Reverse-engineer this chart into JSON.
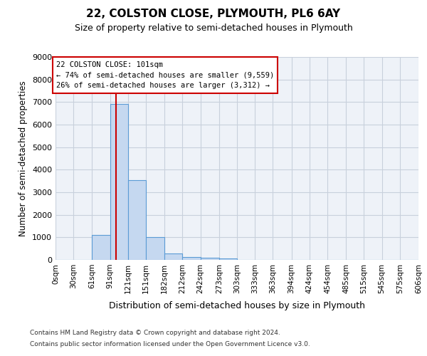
{
  "title1": "22, COLSTON CLOSE, PLYMOUTH, PL6 6AY",
  "title2": "Size of property relative to semi-detached houses in Plymouth",
  "xlabel": "Distribution of semi-detached houses by size in Plymouth",
  "ylabel": "Number of semi-detached properties",
  "bin_labels": [
    "0sqm",
    "30sqm",
    "61sqm",
    "91sqm",
    "121sqm",
    "151sqm",
    "182sqm",
    "212sqm",
    "242sqm",
    "273sqm",
    "303sqm",
    "333sqm",
    "363sqm",
    "394sqm",
    "424sqm",
    "454sqm",
    "485sqm",
    "515sqm",
    "545sqm",
    "575sqm",
    "606sqm"
  ],
  "bin_edges": [
    0,
    30,
    61,
    91,
    121,
    151,
    182,
    212,
    242,
    273,
    303,
    333,
    363,
    394,
    424,
    454,
    485,
    515,
    545,
    575,
    606
  ],
  "bar_heights": [
    0,
    0,
    1100,
    6900,
    3550,
    1000,
    300,
    130,
    90,
    70,
    0,
    0,
    0,
    0,
    0,
    0,
    0,
    0,
    0,
    0
  ],
  "bar_color": "#c5d8f0",
  "bar_edgecolor": "#5b9bd5",
  "grid_color": "#c8d0dc",
  "background_color": "#eef2f8",
  "property_size": 101,
  "property_label": "22 COLSTON CLOSE: 101sqm",
  "pct_smaller": 74,
  "n_smaller": "9,559",
  "pct_larger": 26,
  "n_larger": "3,312",
  "vline_color": "#cc0000",
  "annotation_box_edgecolor": "#cc0000",
  "ylim": [
    0,
    9000
  ],
  "yticks": [
    0,
    1000,
    2000,
    3000,
    4000,
    5000,
    6000,
    7000,
    8000,
    9000
  ],
  "footer1": "Contains HM Land Registry data © Crown copyright and database right 2024.",
  "footer2": "Contains public sector information licensed under the Open Government Licence v3.0."
}
